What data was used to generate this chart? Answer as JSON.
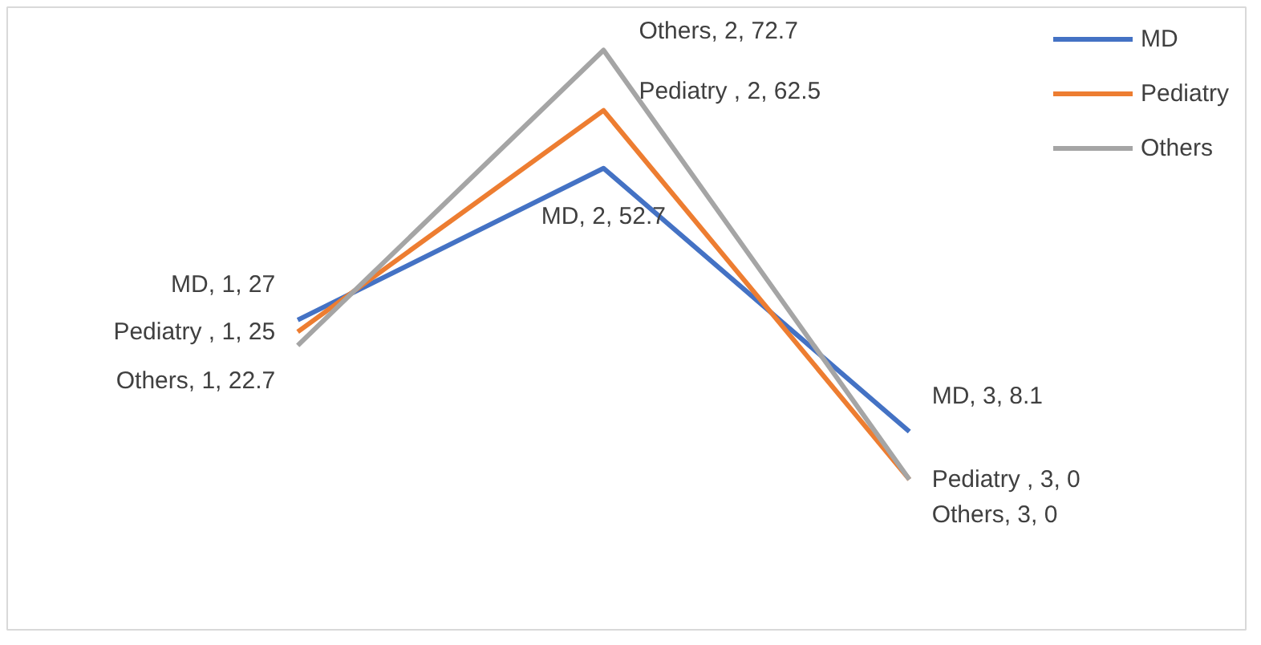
{
  "chart_data": {
    "type": "line",
    "categories": [
      null,
      null,
      null
    ],
    "series": [
      {
        "name": "MD",
        "color": "#4472c4",
        "values": [
          27,
          52.7,
          8.1
        ],
        "value_labels": [
          "MD, 1, 27",
          "MD, 2, 52.7",
          "MD, 3, 8.1"
        ]
      },
      {
        "name": "Pediatry",
        "color": "#ed7d31",
        "values": [
          25,
          62.5,
          0
        ],
        "value_labels": [
          "Pediatry , 1, 25",
          "Pediatry , 2, 62.5",
          "Pediatry , 3, 0"
        ]
      },
      {
        "name": "Others",
        "color": "#a5a5a5",
        "values": [
          22.7,
          72.7,
          0
        ],
        "value_labels": [
          "Others, 1, 22.7",
          "Others, 2, 72.7",
          "Others, 3, 0"
        ]
      }
    ],
    "legend": "top right",
    "grid": false,
    "marker": "none",
    "line_style": "solid",
    "tick_labels": false
  }
}
